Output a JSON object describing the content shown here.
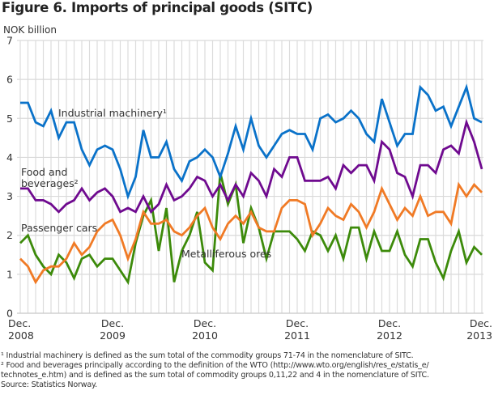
{
  "figure": {
    "title": "Figure 6. Imports of principal goods (SITC)",
    "unit_label": "NOK billion",
    "footnotes": [
      "¹ Industrial machinery is defined as the sum total of the commodity groups 71-74 in the nomenclature of SITC.",
      "² Food and beverages principally according to the definition of the WTO (http://www.wto.org/english/res_e/statis_e/",
      "technotes_e.htm) and is defined as the sum total of commodity groups 0,11,22 and 4 in the nomenclature of SITC."
    ],
    "source": "Source: Statistics Norway."
  },
  "chart_data": {
    "type": "line",
    "title": "Figure 6. Imports of principal goods (SITC)",
    "xlabel": "",
    "ylabel": "NOK billion",
    "ylim": [
      0,
      7
    ],
    "yticks": [
      "0",
      "1",
      "2",
      "3",
      "4",
      "5",
      "6",
      "7"
    ],
    "grid": true,
    "x_start": "Dec. 2008",
    "x_end": "Dec. 2013",
    "x_frequency": "monthly",
    "xtick_labels": [
      {
        "index": 0,
        "line1": "Dec.",
        "line2": "2008"
      },
      {
        "index": 12,
        "line1": "Dec.",
        "line2": "2009"
      },
      {
        "index": 24,
        "line1": "Dec.",
        "line2": "2010"
      },
      {
        "index": 36,
        "line1": "Dec.",
        "line2": "2011"
      },
      {
        "index": 48,
        "line1": "Dec.",
        "line2": "2012"
      },
      {
        "index": 60,
        "line1": "Dec.",
        "line2": "2013"
      }
    ],
    "series": [
      {
        "name": "Industrial machinery¹",
        "color": "#0a72c9",
        "values": [
          5.4,
          5.4,
          4.9,
          4.8,
          5.2,
          4.5,
          4.9,
          4.9,
          4.2,
          3.8,
          4.2,
          4.3,
          4.2,
          3.7,
          3.0,
          3.5,
          4.7,
          4.0,
          4.0,
          4.4,
          3.7,
          3.4,
          3.9,
          4.0,
          4.2,
          4.0,
          3.5,
          4.1,
          4.8,
          4.2,
          5.0,
          4.3,
          4.0,
          4.3,
          4.6,
          4.7,
          4.6,
          4.6,
          4.2,
          5.0,
          5.1,
          4.9,
          5.0,
          5.2,
          5.0,
          4.6,
          4.4,
          5.5,
          4.9,
          4.3,
          4.6,
          4.6,
          5.8,
          5.6,
          5.2,
          5.3,
          4.8,
          5.3,
          5.8,
          5.0,
          4.9
        ]
      },
      {
        "name": "Food and beverages²",
        "color": "#6f0a8f",
        "values": [
          3.2,
          3.2,
          2.9,
          2.9,
          2.8,
          2.6,
          2.8,
          2.9,
          3.2,
          2.9,
          3.1,
          3.2,
          3.0,
          2.6,
          2.7,
          2.6,
          3.0,
          2.6,
          2.8,
          3.3,
          2.9,
          3.0,
          3.2,
          3.5,
          3.4,
          3.0,
          3.3,
          2.9,
          3.3,
          3.0,
          3.6,
          3.4,
          3.0,
          3.7,
          3.5,
          4.0,
          4.0,
          3.4,
          3.4,
          3.4,
          3.5,
          3.2,
          3.8,
          3.6,
          3.8,
          3.8,
          3.4,
          4.4,
          4.2,
          3.6,
          3.5,
          3.0,
          3.8,
          3.8,
          3.6,
          4.2,
          4.3,
          4.1,
          4.9,
          4.4,
          3.7
        ]
      },
      {
        "name": "Passenger cars",
        "color": "#f07a25",
        "values": [
          1.4,
          1.2,
          0.8,
          1.1,
          1.2,
          1.2,
          1.4,
          1.8,
          1.5,
          1.7,
          2.1,
          2.3,
          2.4,
          2.0,
          1.4,
          1.9,
          2.6,
          2.3,
          2.3,
          2.4,
          2.1,
          2.0,
          2.2,
          2.5,
          2.7,
          2.2,
          1.9,
          2.3,
          2.5,
          2.3,
          2.6,
          2.2,
          2.1,
          2.1,
          2.7,
          2.9,
          2.9,
          2.8,
          2.0,
          2.3,
          2.7,
          2.5,
          2.4,
          2.8,
          2.6,
          2.2,
          2.6,
          3.2,
          2.8,
          2.4,
          2.7,
          2.5,
          3.0,
          2.5,
          2.6,
          2.6,
          2.3,
          3.3,
          3.0,
          3.3,
          3.1
        ]
      },
      {
        "name": "Metalliferous ores",
        "color": "#3c8a0a",
        "values": [
          1.8,
          2.0,
          1.5,
          1.2,
          1.0,
          1.5,
          1.3,
          0.9,
          1.4,
          1.5,
          1.2,
          1.4,
          1.4,
          1.1,
          0.8,
          1.8,
          2.5,
          2.9,
          1.6,
          2.7,
          0.8,
          1.6,
          2.0,
          2.6,
          1.3,
          1.1,
          3.6,
          2.8,
          3.3,
          1.8,
          2.7,
          2.2,
          1.4,
          2.1,
          2.1,
          2.1,
          1.9,
          1.6,
          2.1,
          2.0,
          1.6,
          2.0,
          1.4,
          2.2,
          2.2,
          1.4,
          2.1,
          1.6,
          1.6,
          2.1,
          1.5,
          1.2,
          1.9,
          1.9,
          1.3,
          0.9,
          1.6,
          2.1,
          1.3,
          1.7,
          1.5
        ]
      }
    ],
    "annotations": [
      {
        "text": "Industrial machinery¹",
        "series": 0
      },
      {
        "text": "Food and",
        "text2": "beverages²",
        "series": 1
      },
      {
        "text": "Passenger cars",
        "series": 2
      },
      {
        "text": "Metalliferous ores",
        "series": 3
      }
    ]
  }
}
